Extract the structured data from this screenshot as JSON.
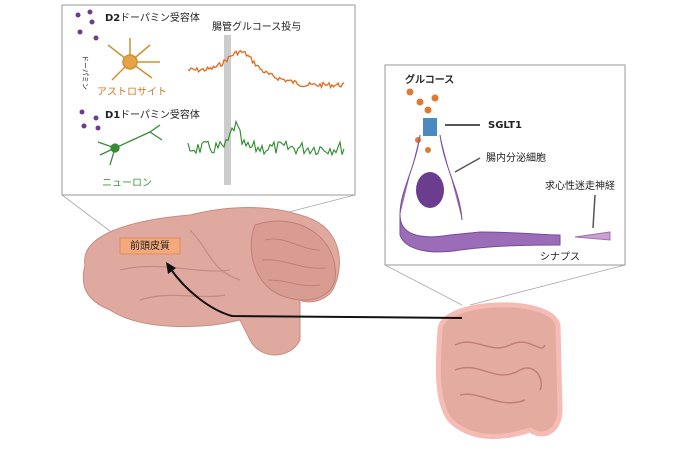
{
  "left_panel": {
    "d2_label": "D2",
    "d2_receptor": "ドーパミン受容体",
    "astrocyte": "アストロサイト",
    "dopamine": "ドーパミン",
    "d1_label": "D1",
    "d1_receptor": "ドーパミン受容体",
    "neuron": "ニューロン",
    "stimulus": "腸管グルコース投与"
  },
  "right_panel": {
    "glucose": "グルコース",
    "sglt1": "SGLT1",
    "cell": "腸内分泌細胞",
    "nerve": "求心性迷走神経",
    "synapse": "シナプス"
  },
  "brain": {
    "region": "前頭皮質"
  }
}
